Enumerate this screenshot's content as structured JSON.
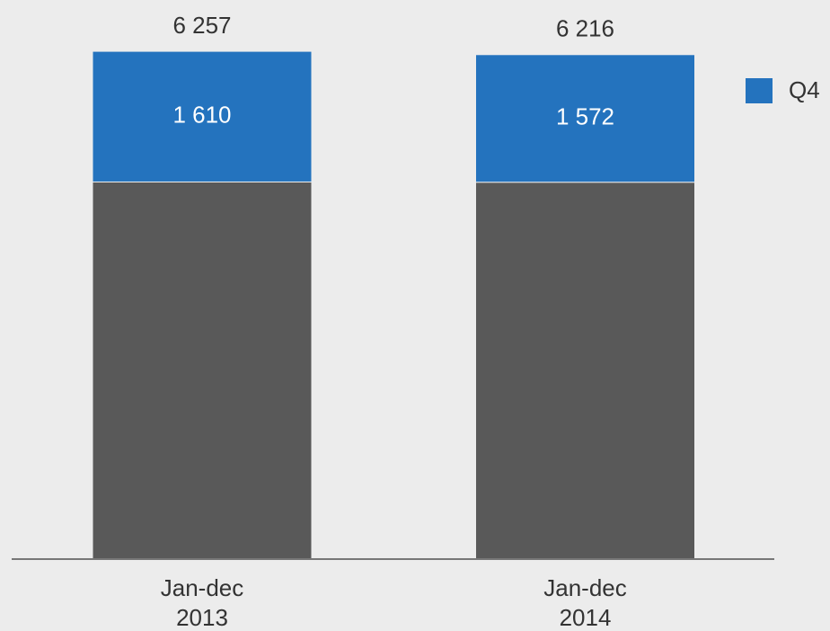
{
  "chart_data": {
    "type": "stacked_bar",
    "categories": [
      "Jan-dec\n2013",
      "Jan-dec\n2014"
    ],
    "series": [
      {
        "color": "#595959",
        "values": [
          4647,
          4644
        ]
      },
      {
        "name": "Q4",
        "color": "#2473be",
        "values": [
          1610,
          1572
        ],
        "value_labels": [
          "1 610",
          "1 572"
        ]
      }
    ],
    "totals": [
      6257,
      6216
    ],
    "total_labels": [
      "6 257",
      "6 216"
    ],
    "ylim": [
      0,
      7000
    ],
    "legend": "top-right"
  }
}
